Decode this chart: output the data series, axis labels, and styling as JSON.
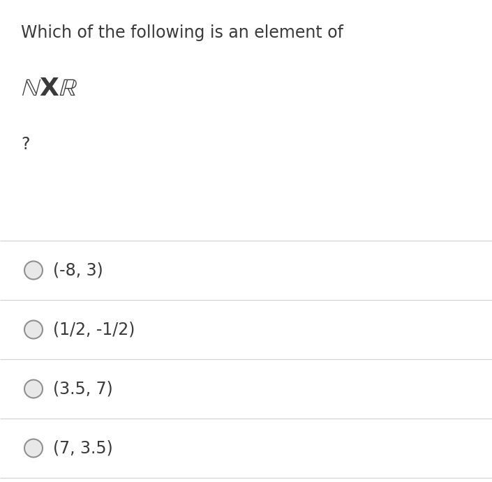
{
  "background_color": "#ffffff",
  "question_line1": "Which of the following is an element of",
  "question_mark": "?",
  "options": [
    "(-8, 3)",
    "(1/2, -1/2)",
    "(3.5, 7)",
    "(7, 3.5)"
  ],
  "text_color": "#3a3a3a",
  "line_color": "#d0d0d0",
  "circle_edge_color": "#909090",
  "circle_fill_color": "#e8e8e8",
  "question_fontsize": 17,
  "set_fontsize": 26,
  "option_fontsize": 17,
  "question_mark_fontsize": 17,
  "fig_width": 7.05,
  "fig_height": 6.91,
  "dpi": 100
}
